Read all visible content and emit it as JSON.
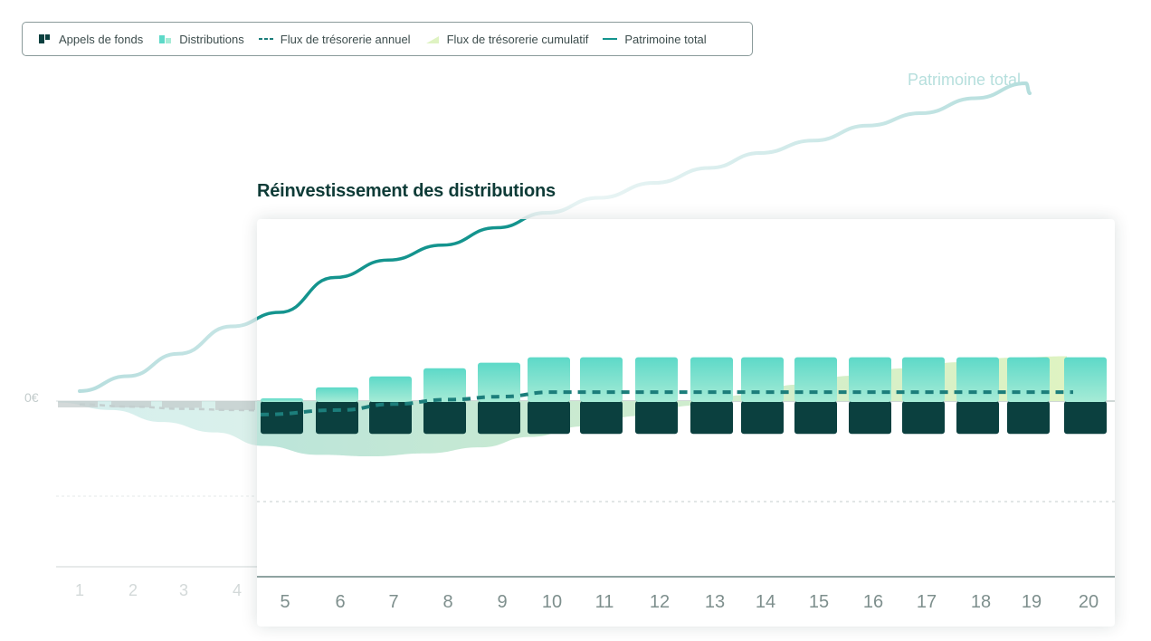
{
  "legend": {
    "items": [
      {
        "label": "Appels de fonds",
        "icon": "capital-calls-icon"
      },
      {
        "label": "Distributions",
        "icon": "distributions-icon"
      },
      {
        "label": "Flux de trésorerie annuel",
        "icon": "annual-cashflow-icon"
      },
      {
        "label": "Flux de trésorerie cumulatif",
        "icon": "cumulative-cashflow-icon"
      },
      {
        "label": "Patrimoine total",
        "icon": "total-wealth-icon"
      }
    ]
  },
  "panel": {
    "title": "Réinvestissement des distributions"
  },
  "colors": {
    "capital_calls": "#0b403f",
    "distributions_top": "#5dd9c8",
    "distributions_bottom": "#a6ebd6",
    "total_wealth": "#14948e",
    "annual_cashflow": "#1c7e7b",
    "cumulative_start": "#b3e1e0",
    "cumulative_end": "#dff3c2",
    "faded_bar": "#c4cccc",
    "axis": "#8fa3a1"
  },
  "chart_data": {
    "type": "bar",
    "title": "Réinvestissement des distributions",
    "zero_label": "0€",
    "categories": [
      "1",
      "2",
      "3",
      "4",
      "5",
      "6",
      "7",
      "8",
      "9",
      "10",
      "11",
      "12",
      "13",
      "14",
      "15",
      "16",
      "17",
      "18",
      "19",
      "20"
    ],
    "highlight_from_category": "5",
    "ylim": [
      -3,
      7
    ],
    "series": [
      {
        "name": "Appels de fonds",
        "type": "bar",
        "values": [
          -0.15,
          -0.25,
          -0.3,
          -0.4,
          -0.55,
          -0.55,
          -0.55,
          -0.55,
          -0.55,
          -0.55,
          -0.55,
          -0.55,
          -0.55,
          -0.55,
          -0.55,
          -0.55,
          -0.55,
          -0.55,
          -0.55,
          -0.55
        ]
      },
      {
        "name": "Distributions",
        "type": "bar",
        "values": [
          0,
          0,
          0,
          0,
          0.05,
          0.25,
          0.45,
          0.6,
          0.7,
          0.8,
          0.8,
          0.8,
          0.8,
          0.8,
          0.8,
          0.8,
          0.8,
          0.8,
          0.8,
          0.8
        ]
      },
      {
        "name": "Flux de trésorerie annuel",
        "type": "line",
        "style": "dashed",
        "values": [
          -0.15,
          -0.25,
          -0.35,
          -0.4,
          -0.45,
          -0.3,
          -0.1,
          0.05,
          0.15,
          0.3,
          0.3,
          0.3,
          0.3,
          0.3,
          0.3,
          0.3,
          0.3,
          0.3,
          0.3,
          0.3
        ]
      },
      {
        "name": "Flux de trésorerie cumulatif",
        "type": "area",
        "x": [
          "1",
          "2",
          "3",
          "4",
          "5",
          "6",
          "7",
          "8",
          "9",
          "10",
          "11",
          "12",
          "13",
          "14",
          "15",
          "16",
          "17",
          "18",
          "19",
          "20"
        ],
        "values": [
          -0.05,
          -0.3,
          -0.7,
          -1.05,
          -1.5,
          -1.8,
          -1.85,
          -1.75,
          -1.55,
          -1.2,
          -0.85,
          -0.5,
          -0.15,
          0.2,
          0.55,
          0.85,
          1.1,
          1.3,
          1.45,
          1.5
        ]
      },
      {
        "name": "Patrimoine total",
        "type": "line",
        "values": [
          0.2,
          0.5,
          0.95,
          1.5,
          1.6,
          2.3,
          2.65,
          2.95,
          3.3,
          3.6,
          3.9,
          4.2,
          4.5,
          4.8,
          5.05,
          5.35,
          5.6,
          5.9,
          6.2,
          6.45
        ],
        "end_label": "Patrimoine total"
      }
    ]
  }
}
